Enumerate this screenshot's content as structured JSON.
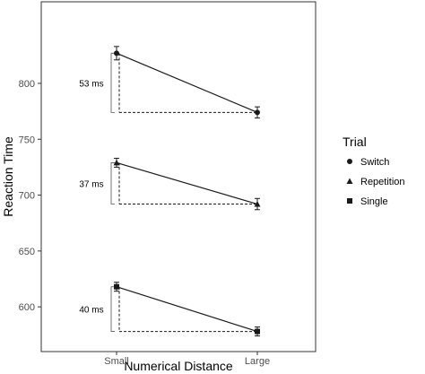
{
  "chart_data": {
    "type": "line",
    "xlabel": "Numerical Distance",
    "ylabel": "Reaction Time",
    "categories": [
      "Small",
      "Large"
    ],
    "ylim": [
      560,
      873
    ],
    "yticks": [
      600,
      650,
      700,
      750,
      800
    ],
    "grid": false,
    "legend": {
      "title": "Trial",
      "placement": "right",
      "entries": [
        {
          "label": "Switch",
          "marker": "circle"
        },
        {
          "label": "Repetition",
          "marker": "triangle"
        },
        {
          "label": "Single",
          "marker": "square"
        }
      ]
    },
    "series": [
      {
        "name": "Switch",
        "marker": "circle",
        "values": [
          827,
          774
        ],
        "error": [
          6,
          5
        ]
      },
      {
        "name": "Repetition",
        "marker": "triangle",
        "values": [
          729,
          692
        ],
        "error": [
          4,
          5
        ]
      },
      {
        "name": "Single",
        "marker": "square",
        "values": [
          618,
          578
        ],
        "error": [
          4,
          4
        ]
      }
    ],
    "annotations": [
      {
        "label": "53 ms",
        "series": "Switch"
      },
      {
        "label": "37 ms",
        "series": "Repetition"
      },
      {
        "label": "40 ms",
        "series": "Single"
      }
    ],
    "colors": {
      "line": "#1a1a1a",
      "axis": "#333333",
      "tick": "#4d4d4d",
      "background": "#ffffff"
    }
  }
}
